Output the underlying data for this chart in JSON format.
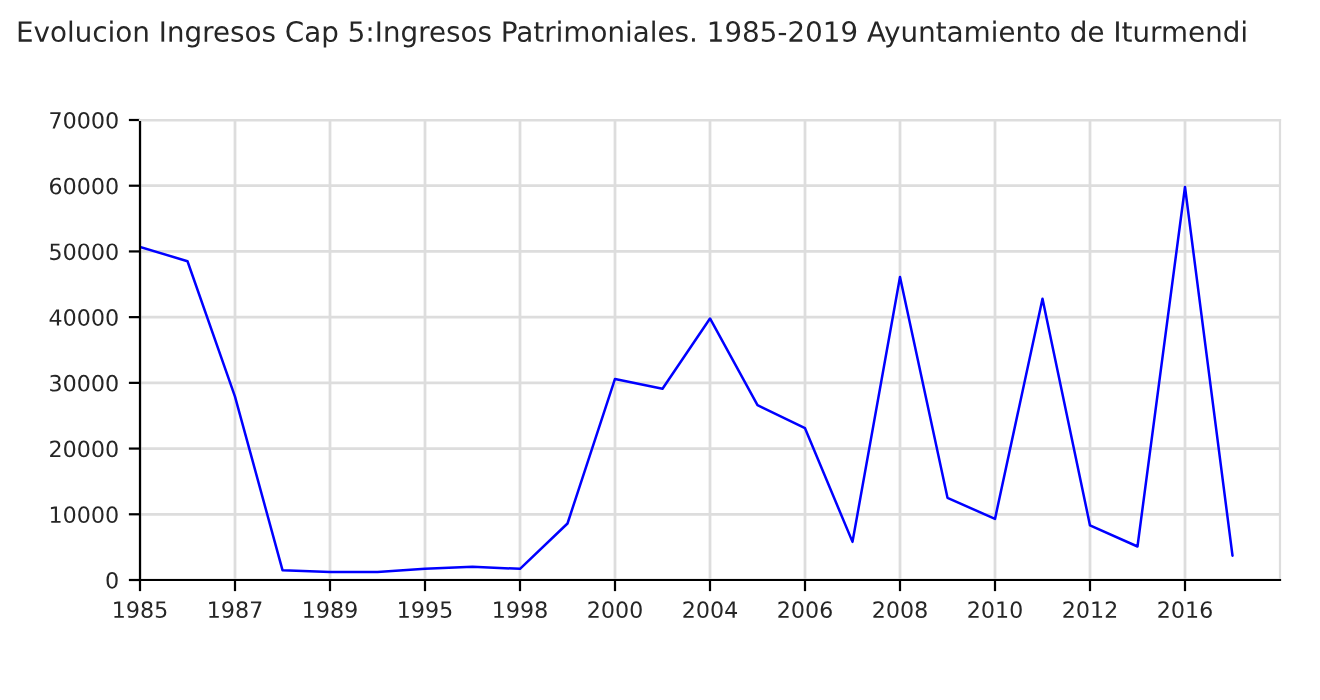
{
  "chart_data": {
    "type": "line",
    "title": "Evolucion Ingresos Cap 5:Ingresos Patrimoniales. 1985-2019 Ayuntamiento de Iturmendi",
    "categories": [
      "1985",
      null,
      "1987",
      null,
      "1989",
      null,
      "1995",
      null,
      "1998",
      null,
      "2000",
      null,
      "2004",
      null,
      "2006",
      null,
      "2008",
      null,
      "2010",
      null,
      "2012",
      null,
      "2016",
      null,
      null
    ],
    "series": [
      {
        "color": "#0000ff",
        "values": [
          50700,
          48500,
          27900,
          1500,
          1200,
          1200,
          1700,
          2000,
          1700,
          8600,
          30600,
          29100,
          39800,
          26600,
          23100,
          5800,
          46100,
          12500,
          9300,
          42800,
          8300,
          5100,
          59800,
          3700,
          null
        ]
      }
    ],
    "ylim": [
      0,
      70000
    ],
    "yticks": [
      0,
      10000,
      20000,
      30000,
      40000,
      50000,
      60000,
      70000
    ],
    "grid": true,
    "marker": "none",
    "line_style": "solid",
    "legend": false
  }
}
